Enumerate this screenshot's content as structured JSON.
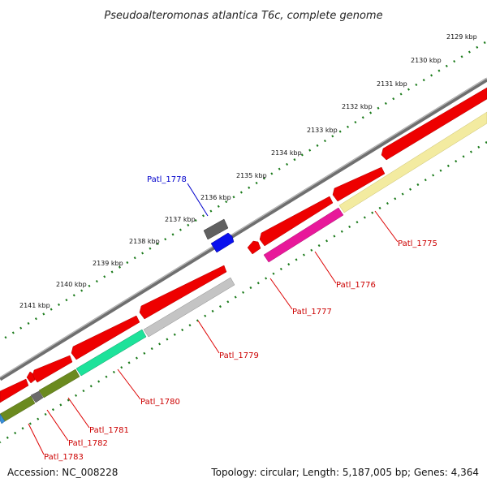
{
  "title": "Pseudoalteromonas atlantica T6c, complete genome",
  "footer": {
    "accession": "Accession: NC_008228",
    "summary": "Topology: circular; Length: 5,187,005 bp; Genes: 4,364"
  },
  "colors": {
    "backbone": "#777777",
    "ticks": "#1a7a1a",
    "label_forward": "#0000cc",
    "label_reverse": "#cc0000"
  },
  "kbp_labels": [
    "2129 kbp",
    "2130 kbp",
    "2131 kbp",
    "2132 kbp",
    "2133 kbp",
    "2134 kbp",
    "2135 kbp",
    "2136 kbp",
    "2137 kbp",
    "2138 kbp",
    "2139 kbp",
    "2140 kbp",
    "2141 kbp"
  ],
  "genes": [
    {
      "label": "Patl_1775",
      "strand": "reverse",
      "color": "#cc0000"
    },
    {
      "label": "Patl_1776",
      "strand": "reverse",
      "color": "#cc0000"
    },
    {
      "label": "Patl_1777",
      "strand": "reverse",
      "color": "#cc0000"
    },
    {
      "label": "Patl_1778",
      "strand": "forward",
      "color": "#0000cc"
    },
    {
      "label": "Patl_1779",
      "strand": "reverse",
      "color": "#cc0000"
    },
    {
      "label": "Patl_1780",
      "strand": "reverse",
      "color": "#cc0000"
    },
    {
      "label": "Patl_1781",
      "strand": "reverse",
      "color": "#cc0000"
    },
    {
      "label": "Patl_1782",
      "strand": "reverse",
      "color": "#cc0000"
    },
    {
      "label": "Patl_1783",
      "strand": "reverse",
      "color": "#cc0000"
    }
  ]
}
